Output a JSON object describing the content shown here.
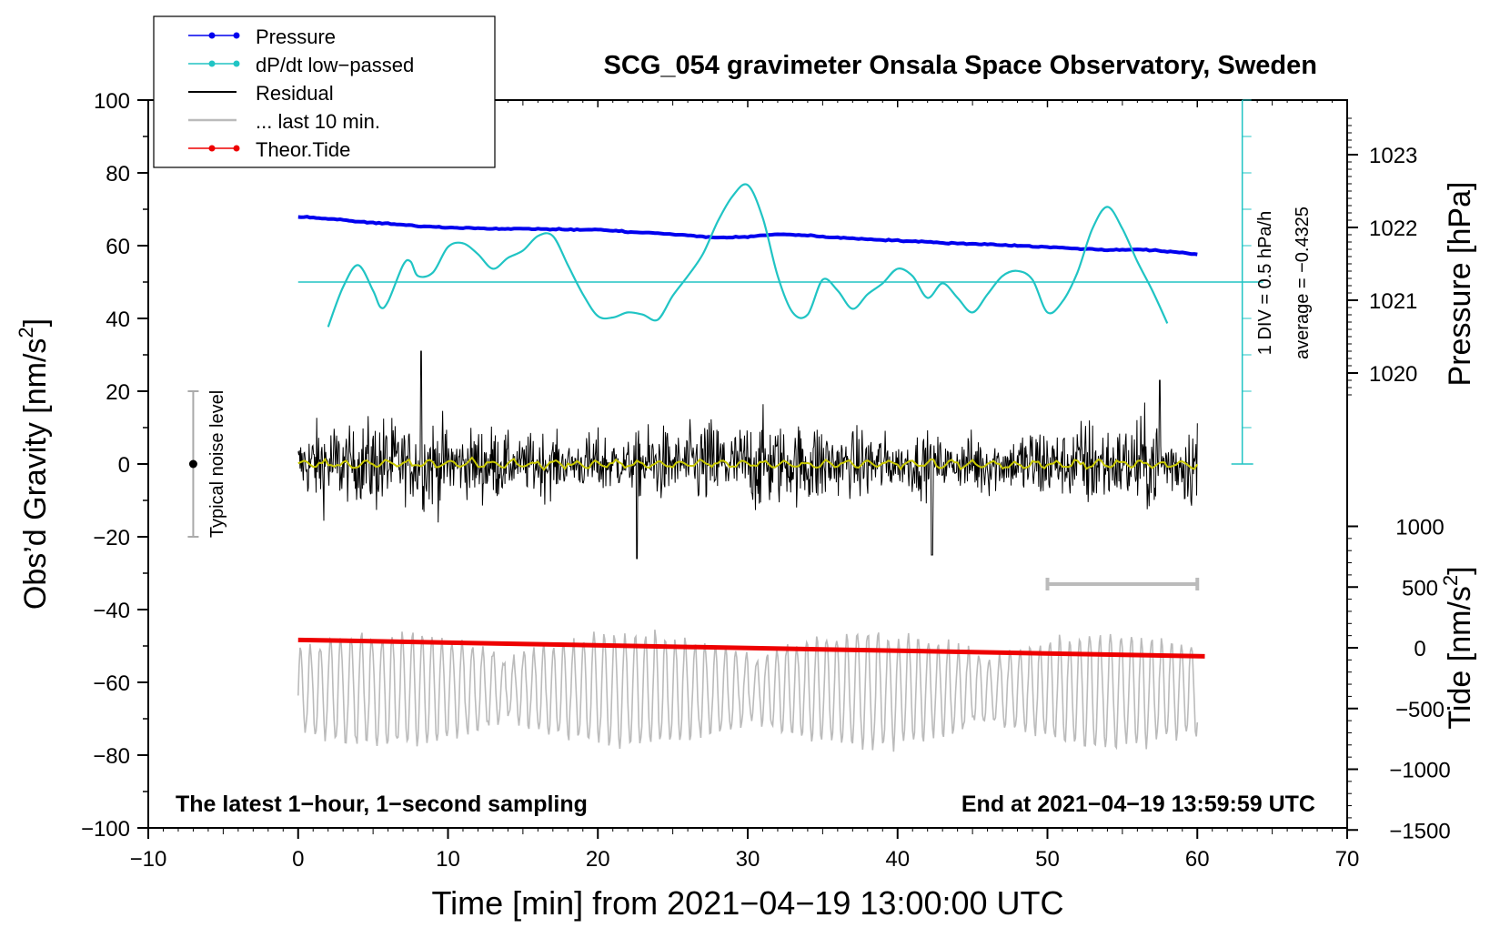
{
  "chart_data": {
    "type": "line",
    "title": "SCG_054 gravimeter Onsala Space Observatory, Sweden",
    "xlabel": "Time [min] from 2021−04−19 13:00:00 UTC",
    "ylabel": "Obs’d Gravity [nm/s",
    "ylabel_sup": "2",
    "ylabel_close": "]",
    "y2_pressure_label": "Pressure [hPa]",
    "y2_tide_label": "Tide [nm/s",
    "y2_tide_sup": "2",
    "y2_tide_close": "]",
    "xlim": [
      -10,
      70
    ],
    "ylim": [
      -100,
      100
    ],
    "x_ticks": [
      "−10",
      "0",
      "10",
      "20",
      "30",
      "40",
      "50",
      "60",
      "70"
    ],
    "y_ticks": [
      "100",
      "80",
      "60",
      "40",
      "20",
      "0",
      "−20",
      "−40",
      "−60",
      "−80",
      "−100"
    ],
    "pressure_ticks": [
      "1023",
      "1022",
      "1021",
      "1020"
    ],
    "tide_ticks": [
      "1000",
      "500",
      "0",
      "−500",
      "−1000",
      "−1500"
    ],
    "legend": {
      "position": "top-left",
      "entries": [
        "Pressure",
        "dP/dt low−passed",
        "Residual",
        "... last 10 min.",
        "Theor.Tide"
      ]
    },
    "annotations": {
      "noise_label": "Typical noise level",
      "dpdt_div": "1 DIV = 0.5 hPa/h",
      "dpdt_avg": "average = −0.4325",
      "bottom_left": "The latest 1−hour, 1−second sampling",
      "bottom_right": "End at 2021−04−19 13:59:59 UTC"
    },
    "colors": {
      "pressure": "#0000ee",
      "dpdt": "#20c4c4",
      "residual": "#000000",
      "residual_mean": "#c8c800",
      "last10": "#bbbbbb",
      "tide": "#ee0000",
      "noise_bar": "#aaaaaa"
    },
    "series": [
      {
        "name": "Pressure",
        "unit": "hPa",
        "x": [
          0,
          2,
          4,
          6,
          8,
          10,
          12,
          14,
          16,
          18,
          20,
          22,
          24,
          26,
          28,
          30,
          32,
          34,
          36,
          38,
          40,
          42,
          44,
          46,
          48,
          50,
          52,
          54,
          56,
          58,
          60
        ],
        "values": [
          1022.15,
          1022.12,
          1022.08,
          1022.05,
          1022.02,
          1022.0,
          1021.99,
          1021.98,
          1021.98,
          1021.97,
          1021.97,
          1021.94,
          1021.92,
          1021.89,
          1021.86,
          1021.87,
          1021.91,
          1021.89,
          1021.86,
          1021.84,
          1021.82,
          1021.8,
          1021.78,
          1021.77,
          1021.75,
          1021.73,
          1021.71,
          1021.69,
          1021.7,
          1021.67,
          1021.63
        ]
      },
      {
        "name": "dP/dt low−passed",
        "unit": "hPa/h",
        "x": [
          2,
          3,
          4,
          5,
          5.5,
          6,
          7,
          7.5,
          8,
          9,
          10,
          11,
          12,
          13,
          14,
          15,
          16,
          17,
          18,
          19,
          20,
          21,
          22,
          23,
          24,
          25,
          26,
          27,
          28,
          29,
          30,
          31,
          32,
          33,
          34,
          35,
          36,
          37,
          38,
          39,
          40,
          41,
          42,
          43,
          44,
          45,
          46,
          47,
          48,
          49,
          50,
          51,
          52,
          53,
          54,
          55,
          56,
          57,
          58
        ],
        "values": [
          -1.05,
          -0.5,
          -0.2,
          -0.55,
          -0.78,
          -0.7,
          -0.2,
          -0.15,
          -0.35,
          -0.3,
          0.05,
          0.1,
          -0.05,
          -0.25,
          -0.1,
          0.0,
          0.2,
          0.2,
          -0.2,
          -0.6,
          -0.9,
          -0.92,
          -0.85,
          -0.88,
          -0.95,
          -0.62,
          -0.35,
          -0.05,
          0.4,
          0.75,
          0.9,
          0.45,
          -0.35,
          -0.85,
          -0.88,
          -0.4,
          -0.55,
          -0.8,
          -0.6,
          -0.45,
          -0.25,
          -0.35,
          -0.65,
          -0.45,
          -0.65,
          -0.85,
          -0.6,
          -0.35,
          -0.28,
          -0.4,
          -0.85,
          -0.7,
          -0.3,
          0.3,
          0.6,
          0.3,
          -0.15,
          -0.55,
          -1.0
        ]
      },
      {
        "name": "Residual",
        "unit": "nm/s^2",
        "x_range": [
          0,
          60
        ],
        "noise_amplitude": 12,
        "peaks": [
          {
            "x": 8.2,
            "y": 31
          },
          {
            "x": 22.6,
            "y": -26
          },
          {
            "x": 42.3,
            "y": -25
          },
          {
            "x": 57.5,
            "y": 23
          }
        ]
      },
      {
        "name": "... last 10 min.",
        "unit": "nm/s^2",
        "x_range": [
          0,
          60
        ],
        "center": -62,
        "amplitude": 14,
        "scale_bar_x": [
          50,
          60
        ],
        "scale_bar_y": -33
      },
      {
        "name": "Theor.Tide",
        "unit": "nm/s^2",
        "x": [
          0,
          60.5
        ],
        "values": [
          65,
          -70
        ]
      }
    ],
    "noise_bar": {
      "x": -7,
      "y_range": [
        -20,
        20
      ],
      "center": 0
    },
    "dpdt_axis": {
      "x": 63,
      "ylim_pressure_div": 0.5,
      "average_line_y": 50
    }
  }
}
